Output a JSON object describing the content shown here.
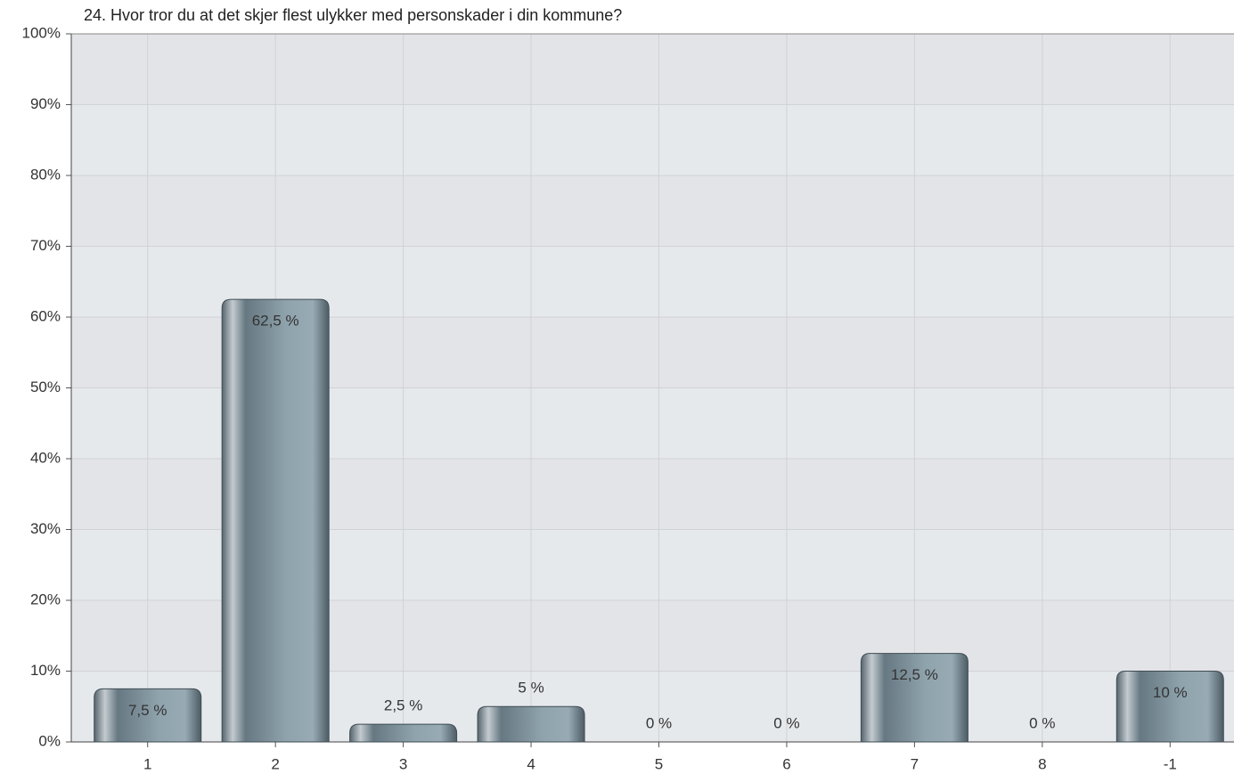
{
  "chart_data": {
    "type": "bar",
    "title": "24. Hvor tror du at det skjer flest ulykker med personskader i din kommune?",
    "categories": [
      "1",
      "2",
      "3",
      "4",
      "5",
      "6",
      "7",
      "8",
      "-1"
    ],
    "values": [
      7.5,
      62.5,
      2.5,
      5,
      0,
      0,
      12.5,
      0,
      10
    ],
    "value_labels": [
      "7,5 %",
      "62,5 %",
      "2,5 %",
      "5 %",
      "0 %",
      "0 %",
      "12,5 %",
      "0 %",
      "10 %"
    ],
    "color": "#7a8e99",
    "ylim": [
      0,
      100
    ],
    "yticks": [
      {
        "value": 0,
        "label": "0%"
      },
      {
        "value": 10,
        "label": "10%"
      },
      {
        "value": 20,
        "label": "20%"
      },
      {
        "value": 30,
        "label": "30%"
      },
      {
        "value": 40,
        "label": "40%"
      },
      {
        "value": 50,
        "label": "50%"
      },
      {
        "value": 60,
        "label": "60%"
      },
      {
        "value": 70,
        "label": "70%"
      },
      {
        "value": 80,
        "label": "80%"
      },
      {
        "value": 90,
        "label": "90%"
      },
      {
        "value": 100,
        "label": "100%"
      }
    ],
    "grid": true
  }
}
